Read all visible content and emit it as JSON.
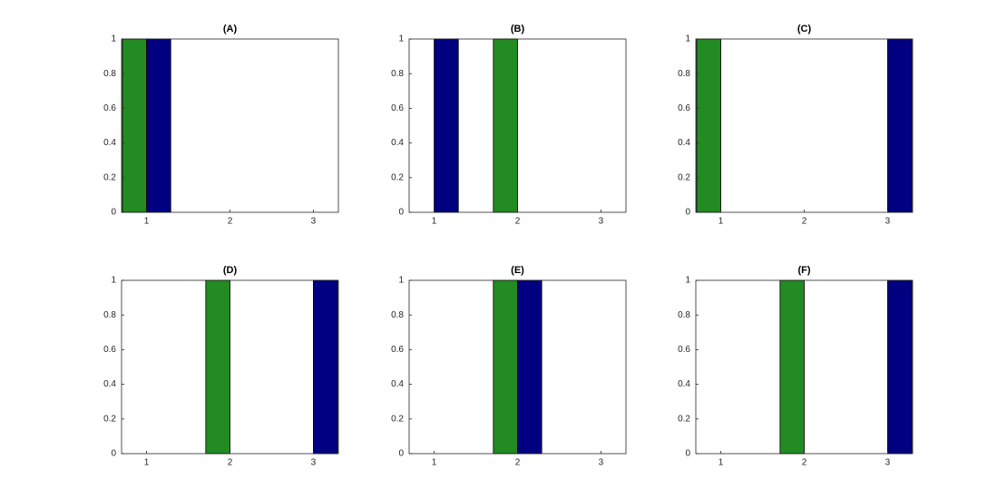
{
  "chart_data": [
    {
      "type": "bar",
      "title": "(A)",
      "x": [
        1,
        2,
        3
      ],
      "xlim": [
        0.7,
        3.3
      ],
      "xticks": [
        1,
        2,
        3
      ],
      "ylim": [
        0,
        1
      ],
      "yticks": [
        0,
        0.2,
        0.4,
        0.6,
        0.8,
        1
      ],
      "series": [
        {
          "color": "#228b22",
          "values": [
            1,
            0,
            0
          ]
        },
        {
          "color": "#000080",
          "values": [
            1,
            0,
            0
          ]
        }
      ]
    },
    {
      "type": "bar",
      "title": "(B)",
      "x": [
        1,
        2,
        3
      ],
      "xlim": [
        0.7,
        3.3
      ],
      "xticks": [
        1,
        2,
        3
      ],
      "ylim": [
        0,
        1
      ],
      "yticks": [
        0,
        0.2,
        0.4,
        0.6,
        0.8,
        1
      ],
      "series": [
        {
          "color": "#228b22",
          "values": [
            0,
            1,
            0
          ]
        },
        {
          "color": "#000080",
          "values": [
            1,
            0,
            0
          ]
        }
      ]
    },
    {
      "type": "bar",
      "title": "(C)",
      "x": [
        1,
        2,
        3
      ],
      "xlim": [
        0.7,
        3.3
      ],
      "xticks": [
        1,
        2,
        3
      ],
      "ylim": [
        0,
        1
      ],
      "yticks": [
        0,
        0.2,
        0.4,
        0.6,
        0.8,
        1
      ],
      "series": [
        {
          "color": "#228b22",
          "values": [
            1,
            0,
            0
          ]
        },
        {
          "color": "#000080",
          "values": [
            0,
            0,
            1
          ]
        }
      ]
    },
    {
      "type": "bar",
      "title": "(D)",
      "x": [
        1,
        2,
        3
      ],
      "xlim": [
        0.7,
        3.3
      ],
      "xticks": [
        1,
        2,
        3
      ],
      "ylim": [
        0,
        1
      ],
      "yticks": [
        0,
        0.2,
        0.4,
        0.6,
        0.8,
        1
      ],
      "series": [
        {
          "color": "#228b22",
          "values": [
            0,
            1,
            0
          ]
        },
        {
          "color": "#000080",
          "values": [
            0,
            0,
            1
          ]
        }
      ]
    },
    {
      "type": "bar",
      "title": "(E)",
      "x": [
        1,
        2,
        3
      ],
      "xlim": [
        0.7,
        3.3
      ],
      "xticks": [
        1,
        2,
        3
      ],
      "ylim": [
        0,
        1
      ],
      "yticks": [
        0,
        0.2,
        0.4,
        0.6,
        0.8,
        1
      ],
      "series": [
        {
          "color": "#228b22",
          "values": [
            0,
            1,
            0
          ]
        },
        {
          "color": "#000080",
          "values": [
            0,
            1,
            0
          ]
        }
      ]
    },
    {
      "type": "bar",
      "title": "(F)",
      "x": [
        1,
        2,
        3
      ],
      "xlim": [
        0.7,
        3.3
      ],
      "xticks": [
        1,
        2,
        3
      ],
      "ylim": [
        0,
        1
      ],
      "yticks": [
        0,
        0.2,
        0.4,
        0.6,
        0.8,
        1
      ],
      "series": [
        {
          "color": "#228b22",
          "values": [
            0,
            1,
            0
          ]
        },
        {
          "color": "#000080",
          "values": [
            0,
            0,
            1
          ]
        }
      ]
    }
  ]
}
